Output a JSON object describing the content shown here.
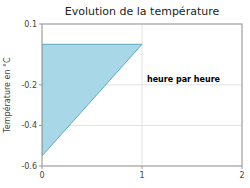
{
  "chart_data": {
    "type": "area",
    "title": "Evolution de la température",
    "ylabel": "Température en °C",
    "annotation": "heure par heure",
    "x": [
      0,
      0,
      1,
      0
    ],
    "values": [
      0,
      -0.55,
      0,
      0
    ],
    "color": "#a8d8e8",
    "xlim": [
      0,
      2
    ],
    "ylim": [
      -0.6,
      0.1
    ],
    "xticks": [
      0,
      1,
      2
    ],
    "yticks": [
      -0.6,
      -0.4,
      -0.2,
      0.1
    ],
    "grid": true
  }
}
